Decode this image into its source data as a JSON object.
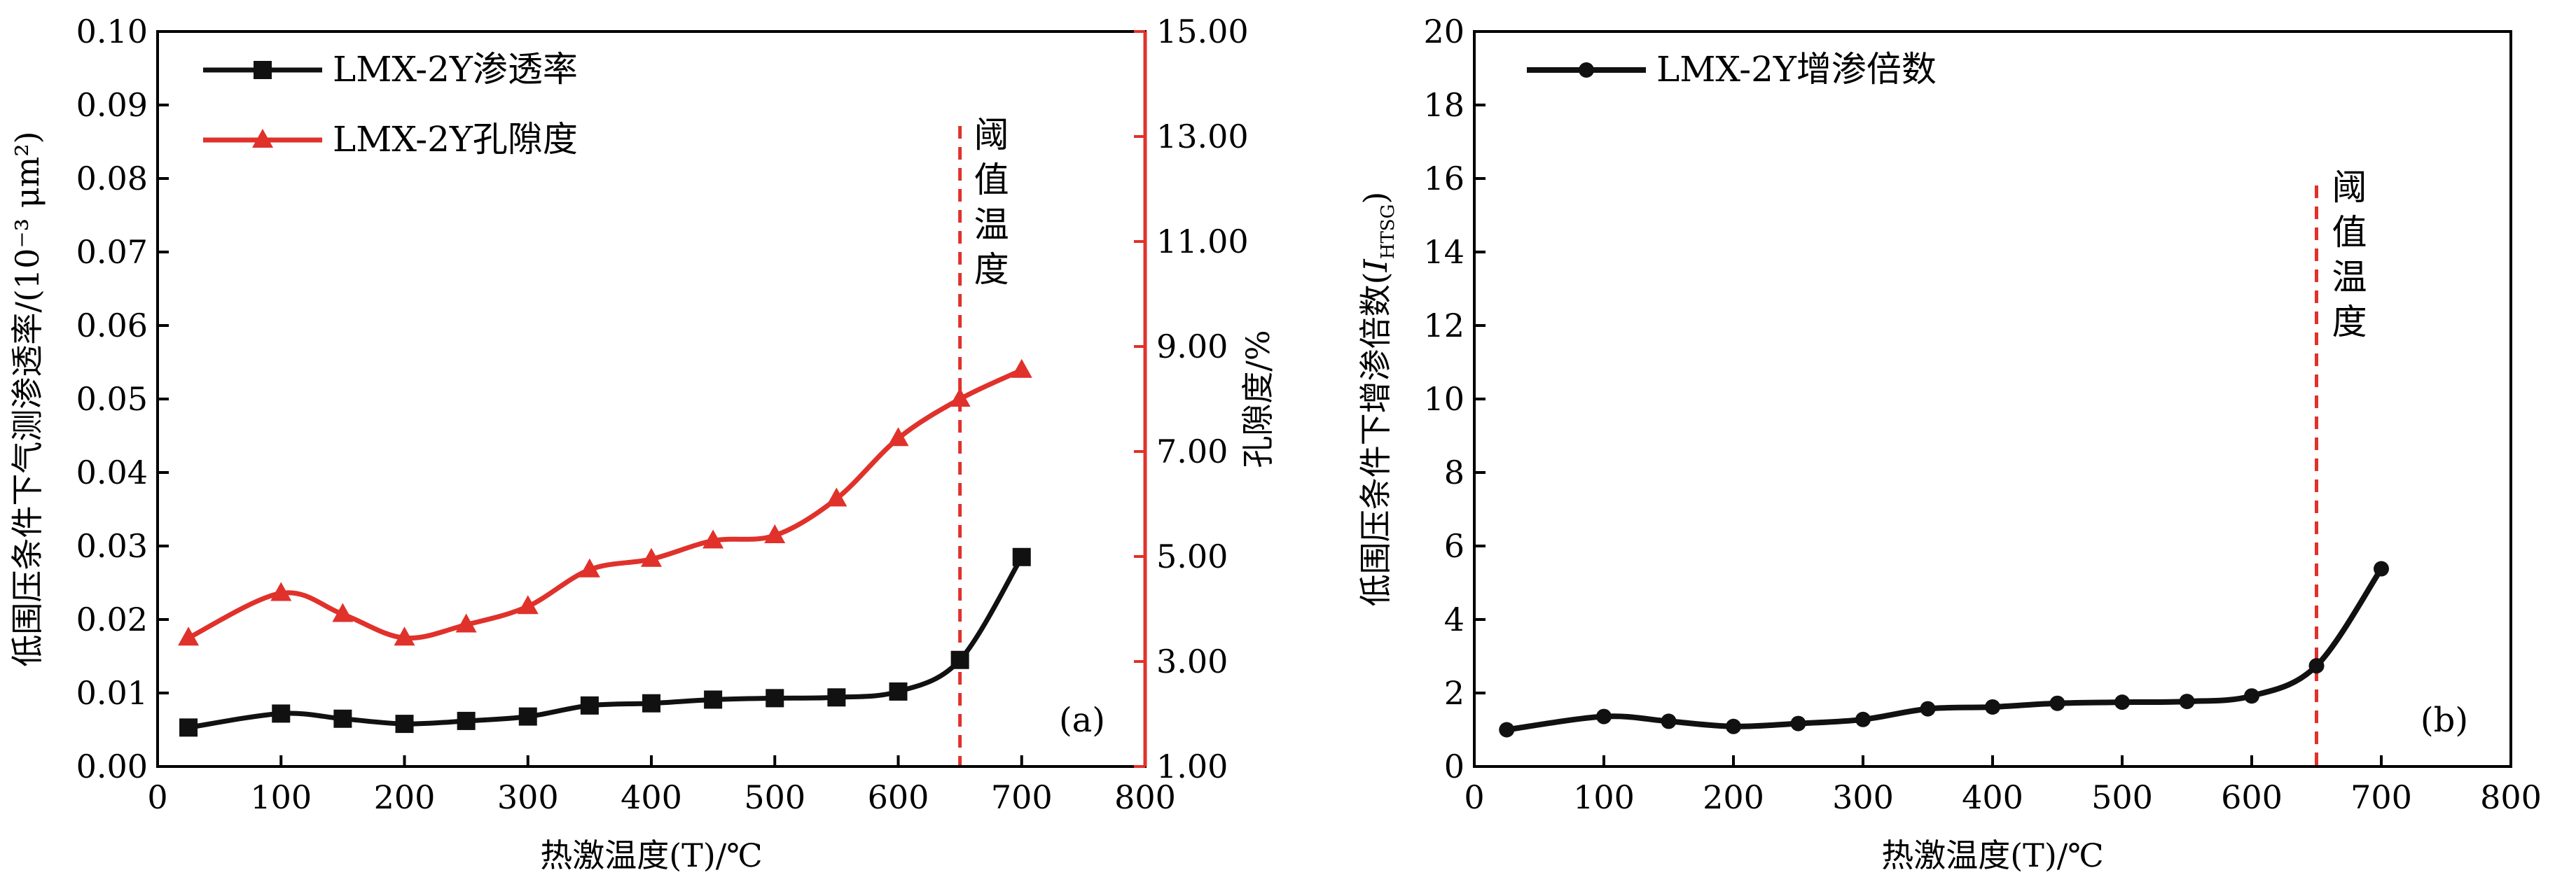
{
  "chart_data": [
    {
      "type": "line",
      "panel_label": "(a)",
      "xlabel": "热激温度(T)/℃",
      "xlim": [
        0,
        800
      ],
      "x_ticks": [
        "0",
        "100",
        "200",
        "300",
        "400",
        "500",
        "600",
        "700",
        "800"
      ],
      "ylabel_left": "低围压条件下气测渗透率/(10⁻³ μm²)",
      "ylim_left": [
        0,
        0.1
      ],
      "y_ticks_left": [
        "0.00",
        "0.01",
        "0.02",
        "0.03",
        "0.04",
        "0.05",
        "0.06",
        "0.07",
        "0.08",
        "0.09",
        "0.10"
      ],
      "ylabel_right": "孔隙度/%",
      "ylim_right": [
        1,
        15
      ],
      "y_ticks_right": [
        "1.00",
        "3.00",
        "5.00",
        "7.00",
        "9.00",
        "11.00",
        "13.00",
        "15.00"
      ],
      "threshold": {
        "x": 650,
        "label": "阈值温度",
        "color": "#e0312b"
      },
      "legend_position": "top-left",
      "series": [
        {
          "name": "LMX-2Y渗透率",
          "axis": "left",
          "marker": "square",
          "color": "#111111",
          "x": [
            25,
            100,
            150,
            200,
            250,
            300,
            350,
            400,
            450,
            500,
            550,
            600,
            650,
            700
          ],
          "y": [
            0.0053,
            0.0072,
            0.0065,
            0.0058,
            0.0062,
            0.0068,
            0.0083,
            0.0086,
            0.0091,
            0.0093,
            0.0094,
            0.0102,
            0.0145,
            0.0285
          ]
        },
        {
          "name": "LMX-2Y孔隙度",
          "axis": "right",
          "marker": "triangle",
          "color": "#e0312b",
          "x": [
            25,
            100,
            150,
            200,
            250,
            300,
            350,
            400,
            450,
            500,
            550,
            600,
            650,
            700
          ],
          "y": [
            3.45,
            4.3,
            3.9,
            3.45,
            3.7,
            4.05,
            4.75,
            4.95,
            5.3,
            5.4,
            6.1,
            7.25,
            8.0,
            8.55
          ]
        }
      ]
    },
    {
      "type": "line",
      "panel_label": "(b)",
      "xlabel": "热激温度(T)/℃",
      "xlim": [
        0,
        800
      ],
      "x_ticks": [
        "0",
        "100",
        "200",
        "300",
        "400",
        "500",
        "600",
        "700",
        "800"
      ],
      "ylabel_main": "低围压条件下增渗倍数(",
      "ylabel_italic": "I",
      "ylabel_sub": "HTSG",
      "ylabel_end": ")",
      "ylim": [
        0,
        20
      ],
      "y_ticks": [
        "0",
        "2",
        "4",
        "6",
        "8",
        "10",
        "12",
        "14",
        "16",
        "18",
        "20"
      ],
      "threshold": {
        "x": 650,
        "label": "阈值温度",
        "color": "#e0312b"
      },
      "legend_position": "top-left",
      "series": [
        {
          "name": "LMX-2Y增渗倍数",
          "marker": "circle",
          "color": "#111111",
          "x": [
            25,
            100,
            150,
            200,
            250,
            300,
            350,
            400,
            450,
            500,
            550,
            600,
            650,
            700
          ],
          "y": [
            1.0,
            1.36,
            1.23,
            1.09,
            1.17,
            1.28,
            1.57,
            1.62,
            1.72,
            1.75,
            1.77,
            1.92,
            2.74,
            5.38
          ]
        }
      ]
    }
  ]
}
